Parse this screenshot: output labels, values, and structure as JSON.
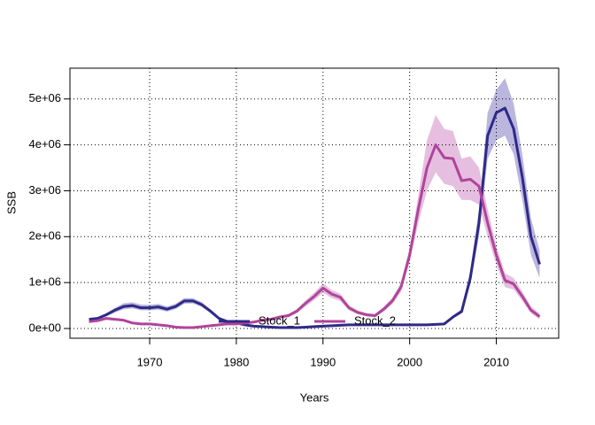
{
  "chart_data": {
    "type": "line",
    "xlabel": "Years",
    "ylabel": "SSB",
    "x": [
      1963,
      1964,
      1965,
      1966,
      1967,
      1968,
      1969,
      1970,
      1971,
      1972,
      1973,
      1974,
      1975,
      1976,
      1977,
      1978,
      1979,
      1980,
      1981,
      1982,
      1983,
      1984,
      1985,
      1986,
      1987,
      1988,
      1989,
      1990,
      1991,
      1992,
      1993,
      1994,
      1995,
      1996,
      1997,
      1998,
      1999,
      2000,
      2001,
      2002,
      2003,
      2004,
      2005,
      2006,
      2007,
      2008,
      2009,
      2010,
      2011,
      2012,
      2013,
      2014,
      2015
    ],
    "series": [
      {
        "name": "Stock_1",
        "color": "#2e2a87",
        "band_color": "#a49ed3",
        "values": [
          200000,
          220000,
          300000,
          400000,
          480000,
          500000,
          450000,
          450000,
          470000,
          420000,
          480000,
          600000,
          600000,
          520000,
          380000,
          220000,
          150000,
          120000,
          80000,
          50000,
          40000,
          30000,
          20000,
          20000,
          20000,
          30000,
          40000,
          50000,
          60000,
          70000,
          80000,
          80000,
          80000,
          80000,
          80000,
          80000,
          80000,
          80000,
          80000,
          80000,
          90000,
          100000,
          250000,
          370000,
          1100000,
          2300000,
          4200000,
          4700000,
          4800000,
          4350000,
          3300000,
          2000000,
          1400000
        ],
        "lower": [
          180000,
          195000,
          265000,
          350000,
          420000,
          440000,
          395000,
          395000,
          410000,
          370000,
          425000,
          540000,
          545000,
          470000,
          340000,
          195000,
          130000,
          105000,
          70000,
          42000,
          33000,
          25000,
          16000,
          16000,
          16000,
          25000,
          34000,
          43000,
          52000,
          60000,
          70000,
          70000,
          70000,
          70000,
          70000,
          70000,
          70000,
          70000,
          70000,
          70000,
          78000,
          87000,
          220000,
          330000,
          950000,
          2000000,
          3700000,
          4100000,
          4200000,
          3800000,
          2800000,
          1600000,
          1100000
        ],
        "upper": [
          230000,
          250000,
          335000,
          450000,
          550000,
          570000,
          520000,
          515000,
          535000,
          480000,
          540000,
          660000,
          660000,
          575000,
          420000,
          250000,
          170000,
          140000,
          95000,
          60000,
          48000,
          36000,
          25000,
          25000,
          25000,
          36000,
          47000,
          58000,
          70000,
          80000,
          92000,
          92000,
          92000,
          92000,
          92000,
          92000,
          92000,
          92000,
          92000,
          92000,
          103000,
          115000,
          285000,
          420000,
          1250000,
          2600000,
          4700000,
          5200000,
          5450000,
          4900000,
          3800000,
          2400000,
          1700000
        ]
      },
      {
        "name": "Stock_2",
        "color": "#b0449b",
        "band_color": "#deaad6",
        "values": [
          150000,
          170000,
          220000,
          200000,
          180000,
          120000,
          100000,
          100000,
          80000,
          60000,
          30000,
          20000,
          20000,
          40000,
          60000,
          80000,
          100000,
          100000,
          120000,
          140000,
          180000,
          200000,
          250000,
          280000,
          380000,
          550000,
          700000,
          880000,
          750000,
          680000,
          450000,
          350000,
          300000,
          280000,
          420000,
          600000,
          900000,
          1600000,
          2600000,
          3500000,
          4000000,
          3720000,
          3700000,
          3220000,
          3250000,
          3100000,
          2300000,
          1600000,
          1050000,
          970000,
          700000,
          400000,
          260000
        ],
        "lower": [
          135000,
          150000,
          195000,
          178000,
          160000,
          105000,
          88000,
          88000,
          70000,
          52000,
          26000,
          17000,
          17000,
          35000,
          52000,
          70000,
          88000,
          88000,
          105000,
          123000,
          158000,
          176000,
          220000,
          246000,
          335000,
          485000,
          620000,
          780000,
          665000,
          600000,
          395000,
          308000,
          264000,
          246000,
          370000,
          530000,
          800000,
          1450000,
          2300000,
          3000000,
          3400000,
          3150000,
          3100000,
          2800000,
          2800000,
          2700000,
          2000000,
          1400000,
          900000,
          850000,
          600000,
          330000,
          200000
        ],
        "upper": [
          165000,
          190000,
          245000,
          222000,
          200000,
          135000,
          112000,
          112000,
          90000,
          68000,
          35000,
          24000,
          24000,
          46000,
          68000,
          90000,
          112000,
          112000,
          135000,
          158000,
          202000,
          225000,
          280000,
          315000,
          425000,
          615000,
          785000,
          980000,
          840000,
          760000,
          505000,
          392000,
          336000,
          314000,
          470000,
          670000,
          1000000,
          1750000,
          2900000,
          4100000,
          4650000,
          4350000,
          4300000,
          3700000,
          3750000,
          3500000,
          2600000,
          1800000,
          1200000,
          1100000,
          800000,
          480000,
          320000
        ]
      }
    ],
    "xlim": [
      1960.8,
      2017.2
    ],
    "xticks": [
      1970,
      1980,
      1990,
      2000,
      2010
    ],
    "ylim": [
      -212000,
      5670000
    ],
    "yticks": [
      {
        "value": 0,
        "label": "0e+00"
      },
      {
        "value": 1000000,
        "label": "1e+06"
      },
      {
        "value": 2000000,
        "label": "2e+06"
      },
      {
        "value": 3000000,
        "label": "3e+06"
      },
      {
        "value": 4000000,
        "label": "4e+06"
      },
      {
        "value": 5000000,
        "label": "5e+06"
      }
    ],
    "grid": true,
    "legend": "bottom"
  }
}
